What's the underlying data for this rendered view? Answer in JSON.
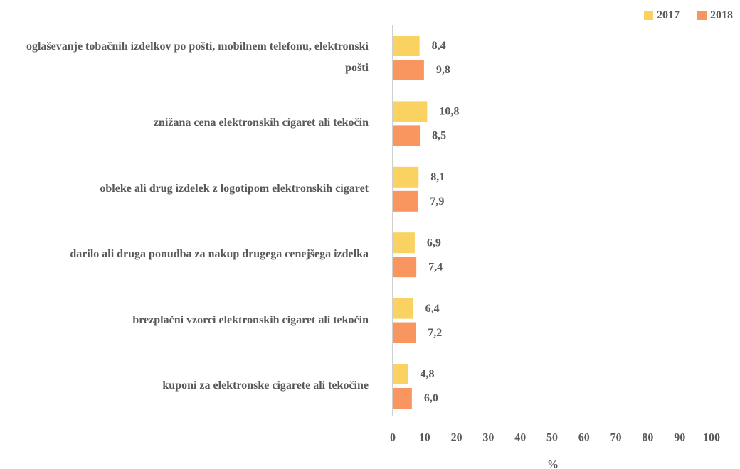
{
  "chart_data": {
    "type": "bar",
    "orientation": "horizontal",
    "categories": [
      "oglaševanje tobačnih izdelkov po pošti, mobilnem telefonu, elektronski pošti",
      "znižana cena elektronskih cigaret ali tekočin",
      "obleke ali drug izdelek z logotipom elektronskih cigaret",
      "darilo ali druga ponudba za nakup drugega cenejšega izdelka",
      "brezplačni vzorci elektronskih cigaret ali tekočin",
      "kuponi za elektronske cigarete ali tekočine"
    ],
    "series": [
      {
        "name": "2017",
        "color": "#f9d262",
        "values": [
          8.4,
          10.8,
          8.1,
          6.9,
          6.4,
          4.8
        ],
        "value_labels": [
          "8,4",
          "10,8",
          "8,1",
          "6,9",
          "6,4",
          "4,8"
        ]
      },
      {
        "name": "2018",
        "color": "#f9965f",
        "values": [
          9.8,
          8.5,
          7.9,
          7.4,
          7.2,
          6.0
        ],
        "value_labels": [
          "9,8",
          "8,5",
          "7,9",
          "7,4",
          "7,2",
          "6,0"
        ]
      }
    ],
    "xlabel": "%",
    "xlim": [
      0,
      100
    ],
    "xticks": [
      0,
      10,
      20,
      30,
      40,
      50,
      60,
      70,
      80,
      90,
      100
    ],
    "legend": "top-right",
    "grid": false
  }
}
